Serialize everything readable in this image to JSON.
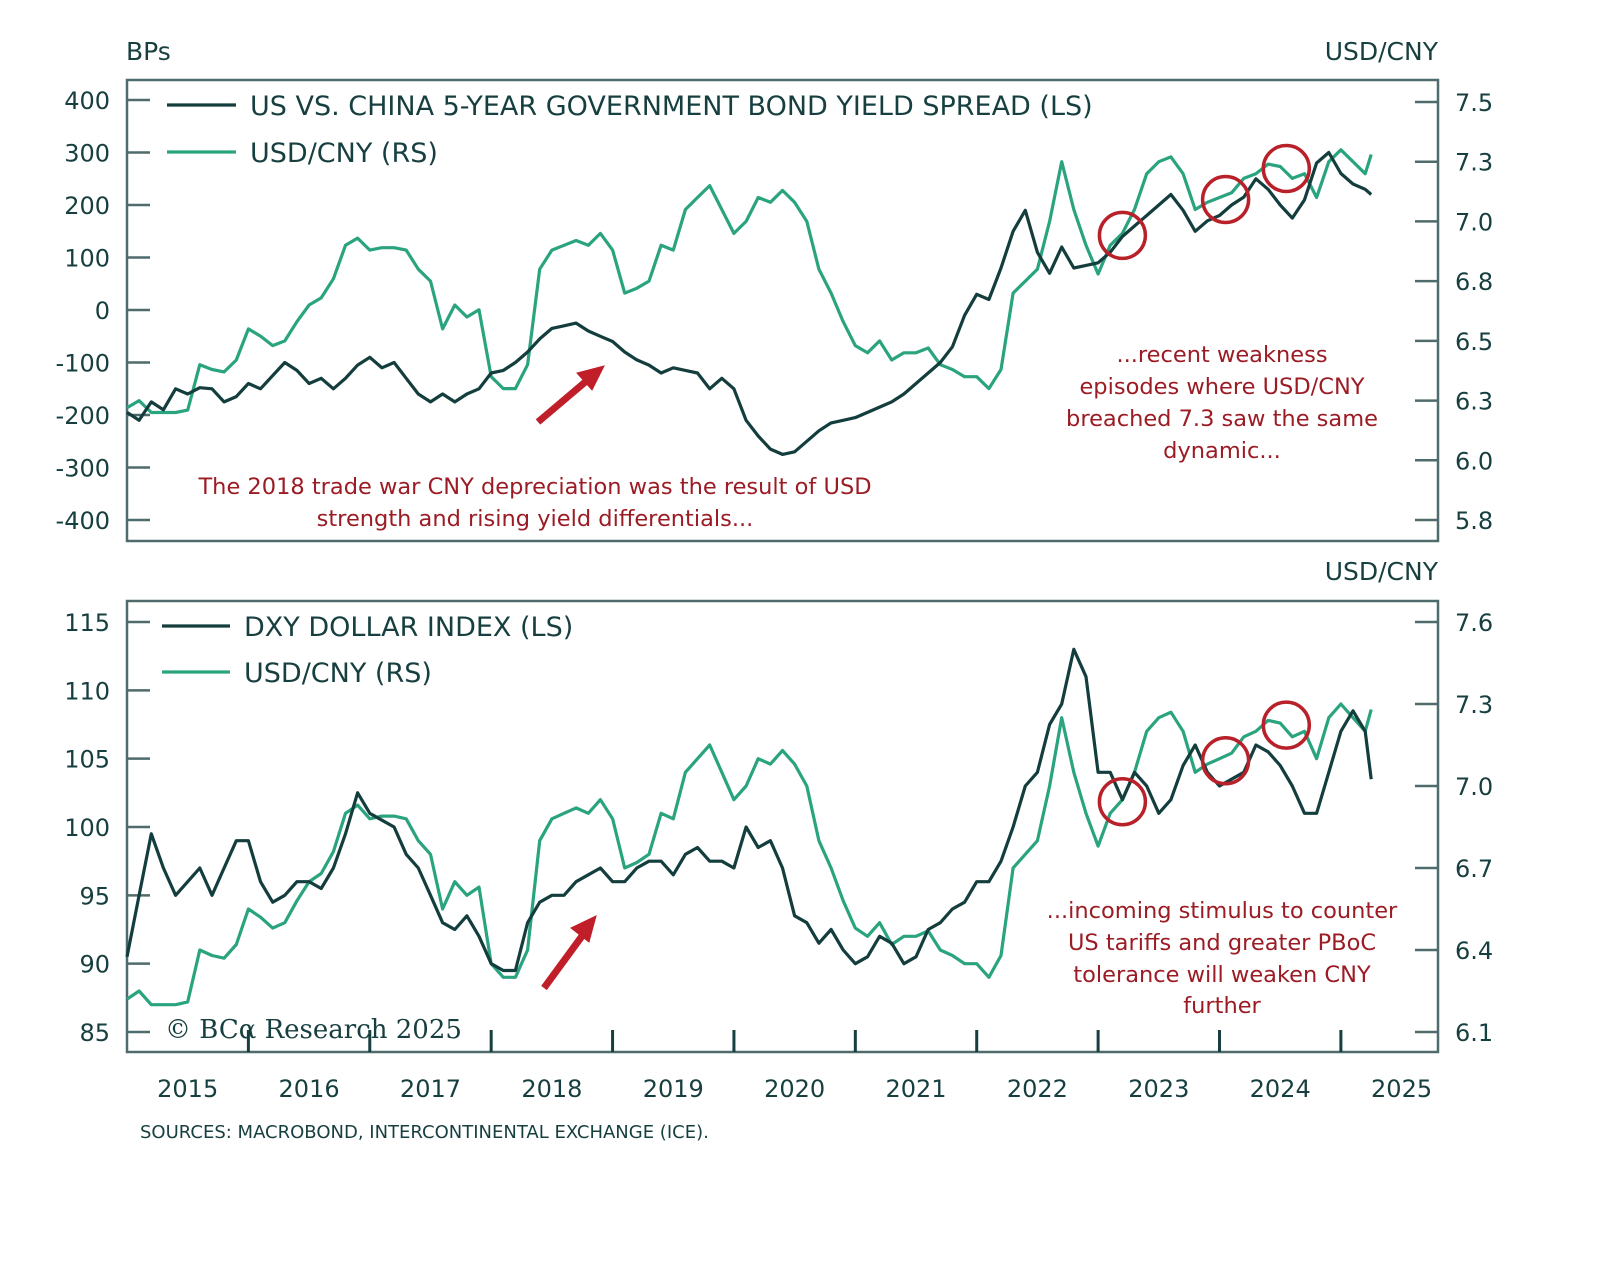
{
  "colors": {
    "dark_series": "#143d3d",
    "green_series": "#2aa37f",
    "annotation": "#9b1c24",
    "axis": "#173f3f"
  },
  "chart_data": [
    {
      "type": "line",
      "title": "",
      "left_unit_label": "BPs",
      "right_unit_label": "USD/CNY",
      "left_axis": {
        "ylim": [
          -400,
          400
        ],
        "ticks": [
          400,
          300,
          200,
          100,
          0,
          -100,
          -200,
          -300,
          -400
        ],
        "tick_labels": [
          "400",
          "300",
          "200",
          "100",
          "0",
          "-100",
          "-200",
          "-300",
          "-400"
        ]
      },
      "right_axis": {
        "ylim": [
          5.75,
          7.5
        ],
        "ticks": [
          7.5,
          7.25,
          7.0,
          6.75,
          6.5,
          6.25,
          6.0,
          5.75
        ],
        "tick_labels": [
          "7.5",
          "7.3",
          "7.0",
          "6.8",
          "6.5",
          "6.3",
          "6.0",
          "5.8"
        ]
      },
      "xlim": [
        2015.0,
        2025.8
      ],
      "legend_position": "top-left",
      "series": [
        {
          "name": "US VS. CHINA 5-YEAR GOVERNMENT BOND YIELD SPREAD (LS)",
          "axis": "left",
          "x": [
            2015.0,
            2015.1,
            2015.2,
            2015.3,
            2015.4,
            2015.5,
            2015.6,
            2015.7,
            2015.8,
            2015.9,
            2016.0,
            2016.1,
            2016.2,
            2016.3,
            2016.4,
            2016.5,
            2016.6,
            2016.7,
            2016.8,
            2016.9,
            2017.0,
            2017.1,
            2017.2,
            2017.3,
            2017.4,
            2017.5,
            2017.6,
            2017.7,
            2017.8,
            2017.9,
            2018.0,
            2018.1,
            2018.2,
            2018.3,
            2018.4,
            2018.5,
            2018.6,
            2018.7,
            2018.8,
            2018.9,
            2019.0,
            2019.1,
            2019.2,
            2019.3,
            2019.4,
            2019.5,
            2019.6,
            2019.7,
            2019.8,
            2019.9,
            2020.0,
            2020.1,
            2020.2,
            2020.3,
            2020.4,
            2020.5,
            2020.6,
            2020.7,
            2020.8,
            2020.9,
            2021.0,
            2021.1,
            2021.2,
            2021.3,
            2021.4,
            2021.5,
            2021.6,
            2021.7,
            2021.8,
            2021.9,
            2022.0,
            2022.1,
            2022.2,
            2022.3,
            2022.4,
            2022.5,
            2022.6,
            2022.7,
            2022.8,
            2022.9,
            2023.0,
            2023.1,
            2023.2,
            2023.3,
            2023.4,
            2023.5,
            2023.6,
            2023.7,
            2023.8,
            2023.9,
            2024.0,
            2024.1,
            2024.2,
            2024.3,
            2024.4,
            2024.5,
            2024.6,
            2024.7,
            2024.8,
            2024.9,
            2025.0,
            2025.1,
            2025.2,
            2025.25
          ],
          "values": [
            -195,
            -210,
            -175,
            -190,
            -150,
            -160,
            -148,
            -150,
            -175,
            -165,
            -140,
            -150,
            -125,
            -100,
            -115,
            -140,
            -130,
            -150,
            -130,
            -105,
            -90,
            -110,
            -100,
            -130,
            -160,
            -175,
            -160,
            -175,
            -160,
            -150,
            -120,
            -115,
            -100,
            -80,
            -55,
            -35,
            -30,
            -25,
            -40,
            -50,
            -60,
            -80,
            -95,
            -105,
            -120,
            -110,
            -115,
            -120,
            -150,
            -130,
            -150,
            -210,
            -240,
            -265,
            -275,
            -270,
            -250,
            -230,
            -215,
            -210,
            -205,
            -195,
            -185,
            -175,
            -160,
            -140,
            -120,
            -100,
            -70,
            -10,
            30,
            20,
            80,
            150,
            190,
            110,
            70,
            120,
            80,
            85,
            90,
            110,
            140,
            160,
            180,
            200,
            220,
            190,
            150,
            170,
            180,
            200,
            215,
            250,
            230,
            200,
            175,
            210,
            280,
            300,
            260,
            240,
            230,
            220
          ],
          "color_key": "dark_series"
        },
        {
          "name": "USD/CNY (RS)",
          "axis": "right",
          "x": [
            2015.0,
            2015.1,
            2015.2,
            2015.3,
            2015.4,
            2015.5,
            2015.6,
            2015.7,
            2015.8,
            2015.9,
            2016.0,
            2016.1,
            2016.2,
            2016.3,
            2016.4,
            2016.5,
            2016.6,
            2016.7,
            2016.8,
            2016.9,
            2017.0,
            2017.1,
            2017.2,
            2017.3,
            2017.4,
            2017.5,
            2017.6,
            2017.7,
            2017.8,
            2017.9,
            2018.0,
            2018.1,
            2018.2,
            2018.3,
            2018.4,
            2018.5,
            2018.6,
            2018.7,
            2018.8,
            2018.9,
            2019.0,
            2019.1,
            2019.2,
            2019.3,
            2019.4,
            2019.5,
            2019.6,
            2019.7,
            2019.8,
            2019.9,
            2020.0,
            2020.1,
            2020.2,
            2020.3,
            2020.4,
            2020.5,
            2020.6,
            2020.7,
            2020.8,
            2020.9,
            2021.0,
            2021.1,
            2021.2,
            2021.3,
            2021.4,
            2021.5,
            2021.6,
            2021.7,
            2021.8,
            2021.9,
            2022.0,
            2022.1,
            2022.2,
            2022.3,
            2022.4,
            2022.5,
            2022.6,
            2022.7,
            2022.8,
            2022.9,
            2023.0,
            2023.1,
            2023.2,
            2023.3,
            2023.4,
            2023.5,
            2023.6,
            2023.7,
            2023.8,
            2023.9,
            2024.0,
            2024.1,
            2024.2,
            2024.3,
            2024.4,
            2024.5,
            2024.6,
            2024.7,
            2024.8,
            2024.9,
            2025.0,
            2025.1,
            2025.2,
            2025.25
          ],
          "values": [
            6.22,
            6.25,
            6.2,
            6.2,
            6.2,
            6.21,
            6.4,
            6.38,
            6.37,
            6.42,
            6.55,
            6.52,
            6.48,
            6.5,
            6.58,
            6.65,
            6.68,
            6.76,
            6.9,
            6.93,
            6.88,
            6.89,
            6.89,
            6.88,
            6.8,
            6.75,
            6.55,
            6.65,
            6.6,
            6.63,
            6.35,
            6.3,
            6.3,
            6.4,
            6.8,
            6.88,
            6.9,
            6.92,
            6.9,
            6.95,
            6.88,
            6.7,
            6.72,
            6.75,
            6.9,
            6.88,
            7.05,
            7.1,
            7.15,
            7.05,
            6.95,
            7.0,
            7.1,
            7.08,
            7.13,
            7.08,
            7.0,
            6.8,
            6.7,
            6.58,
            6.48,
            6.45,
            6.5,
            6.42,
            6.45,
            6.45,
            6.47,
            6.4,
            6.38,
            6.35,
            6.35,
            6.3,
            6.38,
            6.7,
            6.75,
            6.8,
            7.0,
            7.25,
            7.05,
            6.9,
            6.78,
            6.9,
            6.95,
            7.05,
            7.2,
            7.25,
            7.27,
            7.2,
            7.05,
            7.08,
            7.1,
            7.12,
            7.18,
            7.2,
            7.24,
            7.23,
            7.18,
            7.2,
            7.1,
            7.25,
            7.3,
            7.25,
            7.2,
            7.28
          ],
          "color_key": "green_series"
        }
      ],
      "annotations": [
        {
          "text_lines": [
            "The 2018 trade war CNY depreciation was the result of USD",
            "strength and rising yield differentials..."
          ]
        },
        {
          "text_lines": [
            "...recent weakness",
            "episodes where USD/CNY",
            "breached 7.3 saw the same",
            "dynamic..."
          ]
        }
      ],
      "highlight_circles_at_x": [
        2023.2,
        2024.05,
        2024.55
      ]
    },
    {
      "type": "line",
      "title": "",
      "right_unit_label": "USD/CNY",
      "left_axis": {
        "ylim": [
          85,
          115
        ],
        "ticks": [
          115,
          110,
          105,
          100,
          95,
          90,
          85
        ],
        "tick_labels": [
          "115",
          "110",
          "105",
          "100",
          "95",
          "90",
          "85"
        ]
      },
      "right_axis": {
        "ylim": [
          6.1,
          7.6
        ],
        "ticks": [
          7.6,
          7.3,
          7.0,
          6.7,
          6.4,
          6.1
        ],
        "tick_labels": [
          "7.6",
          "7.3",
          "7.0",
          "6.7",
          "6.4",
          "6.1"
        ]
      },
      "xlim": [
        2015.0,
        2025.8
      ],
      "x_tick_labels": [
        "2015",
        "2016",
        "2017",
        "2018",
        "2019",
        "2020",
        "2021",
        "2022",
        "2023",
        "2024",
        "2025"
      ],
      "legend_position": "top-left",
      "series": [
        {
          "name": "DXY DOLLAR INDEX (LS)",
          "axis": "left",
          "x": [
            2015.0,
            2015.1,
            2015.2,
            2015.3,
            2015.4,
            2015.5,
            2015.6,
            2015.7,
            2015.8,
            2015.9,
            2016.0,
            2016.1,
            2016.2,
            2016.3,
            2016.4,
            2016.5,
            2016.6,
            2016.7,
            2016.8,
            2016.9,
            2017.0,
            2017.1,
            2017.2,
            2017.3,
            2017.4,
            2017.5,
            2017.6,
            2017.7,
            2017.8,
            2017.9,
            2018.0,
            2018.1,
            2018.2,
            2018.3,
            2018.4,
            2018.5,
            2018.6,
            2018.7,
            2018.8,
            2018.9,
            2019.0,
            2019.1,
            2019.2,
            2019.3,
            2019.4,
            2019.5,
            2019.6,
            2019.7,
            2019.8,
            2019.9,
            2020.0,
            2020.1,
            2020.2,
            2020.3,
            2020.4,
            2020.5,
            2020.6,
            2020.7,
            2020.8,
            2020.9,
            2021.0,
            2021.1,
            2021.2,
            2021.3,
            2021.4,
            2021.5,
            2021.6,
            2021.7,
            2021.8,
            2021.9,
            2022.0,
            2022.1,
            2022.2,
            2022.3,
            2022.4,
            2022.5,
            2022.6,
            2022.7,
            2022.8,
            2022.9,
            2023.0,
            2023.1,
            2023.2,
            2023.3,
            2023.4,
            2023.5,
            2023.6,
            2023.7,
            2023.8,
            2023.9,
            2024.0,
            2024.1,
            2024.2,
            2024.3,
            2024.4,
            2024.5,
            2024.6,
            2024.7,
            2024.8,
            2024.9,
            2025.0,
            2025.1,
            2025.2,
            2025.25
          ],
          "values": [
            90.5,
            95,
            99.5,
            97,
            95,
            96,
            97,
            95,
            97,
            99,
            99,
            96,
            94.5,
            95,
            96,
            96,
            95.5,
            97,
            99.5,
            102.5,
            101,
            100.5,
            100,
            98,
            97,
            95,
            93,
            92.5,
            93.5,
            92,
            90,
            89.5,
            89.5,
            93,
            94.5,
            95,
            95,
            96,
            96.5,
            97,
            96,
            96,
            97,
            97.5,
            97.5,
            96.5,
            98,
            98.5,
            97.5,
            97.5,
            97,
            100,
            98.5,
            99,
            97,
            93.5,
            93,
            91.5,
            92.5,
            91,
            90,
            90.5,
            92,
            91.5,
            90,
            90.5,
            92.5,
            93,
            94,
            94.5,
            96,
            96,
            97.5,
            100,
            103,
            104,
            107.5,
            109,
            113,
            111,
            104,
            104,
            102,
            104,
            103,
            101,
            102,
            104.5,
            106,
            104,
            103,
            103.5,
            104,
            106,
            105.5,
            104.5,
            103,
            101,
            101,
            104,
            107,
            108.5,
            107,
            103.5
          ],
          "color_key": "dark_series"
        },
        {
          "name": "USD/CNY (RS)",
          "axis": "right",
          "x": [
            2015.0,
            2015.1,
            2015.2,
            2015.3,
            2015.4,
            2015.5,
            2015.6,
            2015.7,
            2015.8,
            2015.9,
            2016.0,
            2016.1,
            2016.2,
            2016.3,
            2016.4,
            2016.5,
            2016.6,
            2016.7,
            2016.8,
            2016.9,
            2017.0,
            2017.1,
            2017.2,
            2017.3,
            2017.4,
            2017.5,
            2017.6,
            2017.7,
            2017.8,
            2017.9,
            2018.0,
            2018.1,
            2018.2,
            2018.3,
            2018.4,
            2018.5,
            2018.6,
            2018.7,
            2018.8,
            2018.9,
            2019.0,
            2019.1,
            2019.2,
            2019.3,
            2019.4,
            2019.5,
            2019.6,
            2019.7,
            2019.8,
            2019.9,
            2020.0,
            2020.1,
            2020.2,
            2020.3,
            2020.4,
            2020.5,
            2020.6,
            2020.7,
            2020.8,
            2020.9,
            2021.0,
            2021.1,
            2021.2,
            2021.3,
            2021.4,
            2021.5,
            2021.6,
            2021.7,
            2021.8,
            2021.9,
            2022.0,
            2022.1,
            2022.2,
            2022.3,
            2022.4,
            2022.5,
            2022.6,
            2022.7,
            2022.8,
            2022.9,
            2023.0,
            2023.1,
            2023.2,
            2023.3,
            2023.4,
            2023.5,
            2023.6,
            2023.7,
            2023.8,
            2023.9,
            2024.0,
            2024.1,
            2024.2,
            2024.3,
            2024.4,
            2024.5,
            2024.6,
            2024.7,
            2024.8,
            2024.9,
            2025.0,
            2025.1,
            2025.2,
            2025.25
          ],
          "values": [
            6.22,
            6.25,
            6.2,
            6.2,
            6.2,
            6.21,
            6.4,
            6.38,
            6.37,
            6.42,
            6.55,
            6.52,
            6.48,
            6.5,
            6.58,
            6.65,
            6.68,
            6.76,
            6.9,
            6.93,
            6.88,
            6.89,
            6.89,
            6.88,
            6.8,
            6.75,
            6.55,
            6.65,
            6.6,
            6.63,
            6.35,
            6.3,
            6.3,
            6.4,
            6.8,
            6.88,
            6.9,
            6.92,
            6.9,
            6.95,
            6.88,
            6.7,
            6.72,
            6.75,
            6.9,
            6.88,
            7.05,
            7.1,
            7.15,
            7.05,
            6.95,
            7.0,
            7.1,
            7.08,
            7.13,
            7.08,
            7.0,
            6.8,
            6.7,
            6.58,
            6.48,
            6.45,
            6.5,
            6.42,
            6.45,
            6.45,
            6.47,
            6.4,
            6.38,
            6.35,
            6.35,
            6.3,
            6.38,
            6.7,
            6.75,
            6.8,
            7.0,
            7.25,
            7.05,
            6.9,
            6.78,
            6.9,
            6.95,
            7.05,
            7.2,
            7.25,
            7.27,
            7.2,
            7.05,
            7.08,
            7.1,
            7.12,
            7.18,
            7.2,
            7.24,
            7.23,
            7.18,
            7.2,
            7.1,
            7.25,
            7.3,
            7.25,
            7.2,
            7.28
          ],
          "color_key": "green_series"
        }
      ],
      "annotations": [
        {
          "text_lines": [
            "...incoming stimulus to counter",
            "US tariffs and greater PBoC",
            "tolerance will weaken CNY",
            "further"
          ]
        }
      ],
      "highlight_circles_at_x": [
        2023.2,
        2024.05,
        2024.55
      ]
    }
  ],
  "footer": {
    "copyright": "© BCα Research 2025",
    "sources": "SOURCES: MACROBOND, INTERCONTINENTAL EXCHANGE (ICE)."
  }
}
